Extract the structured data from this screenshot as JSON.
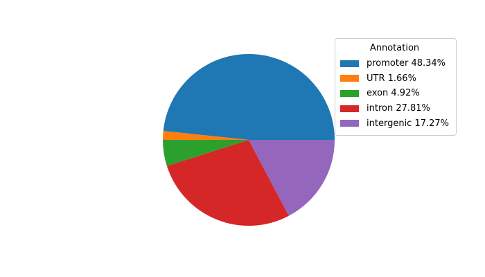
{
  "chart_data": {
    "type": "pie",
    "legend_title": "Annotation",
    "legend_position": "upper right",
    "start_angle": 0,
    "direction": "counterclockwise",
    "background": "#ffffff",
    "slices": [
      {
        "label": "promoter",
        "value": 48.34,
        "legend_text": "promoter 48.34%",
        "color": "#1f77b4"
      },
      {
        "label": "UTR",
        "value": 1.66,
        "legend_text": "UTR 1.66%",
        "color": "#ff7f0e"
      },
      {
        "label": "exon",
        "value": 4.92,
        "legend_text": "exon 4.92%",
        "color": "#2ca02c"
      },
      {
        "label": "intron",
        "value": 27.81,
        "legend_text": "intron 27.81%",
        "color": "#d62728"
      },
      {
        "label": "intergenic",
        "value": 17.27,
        "legend_text": "intergenic 17.27%",
        "color": "#9467bd"
      }
    ]
  }
}
